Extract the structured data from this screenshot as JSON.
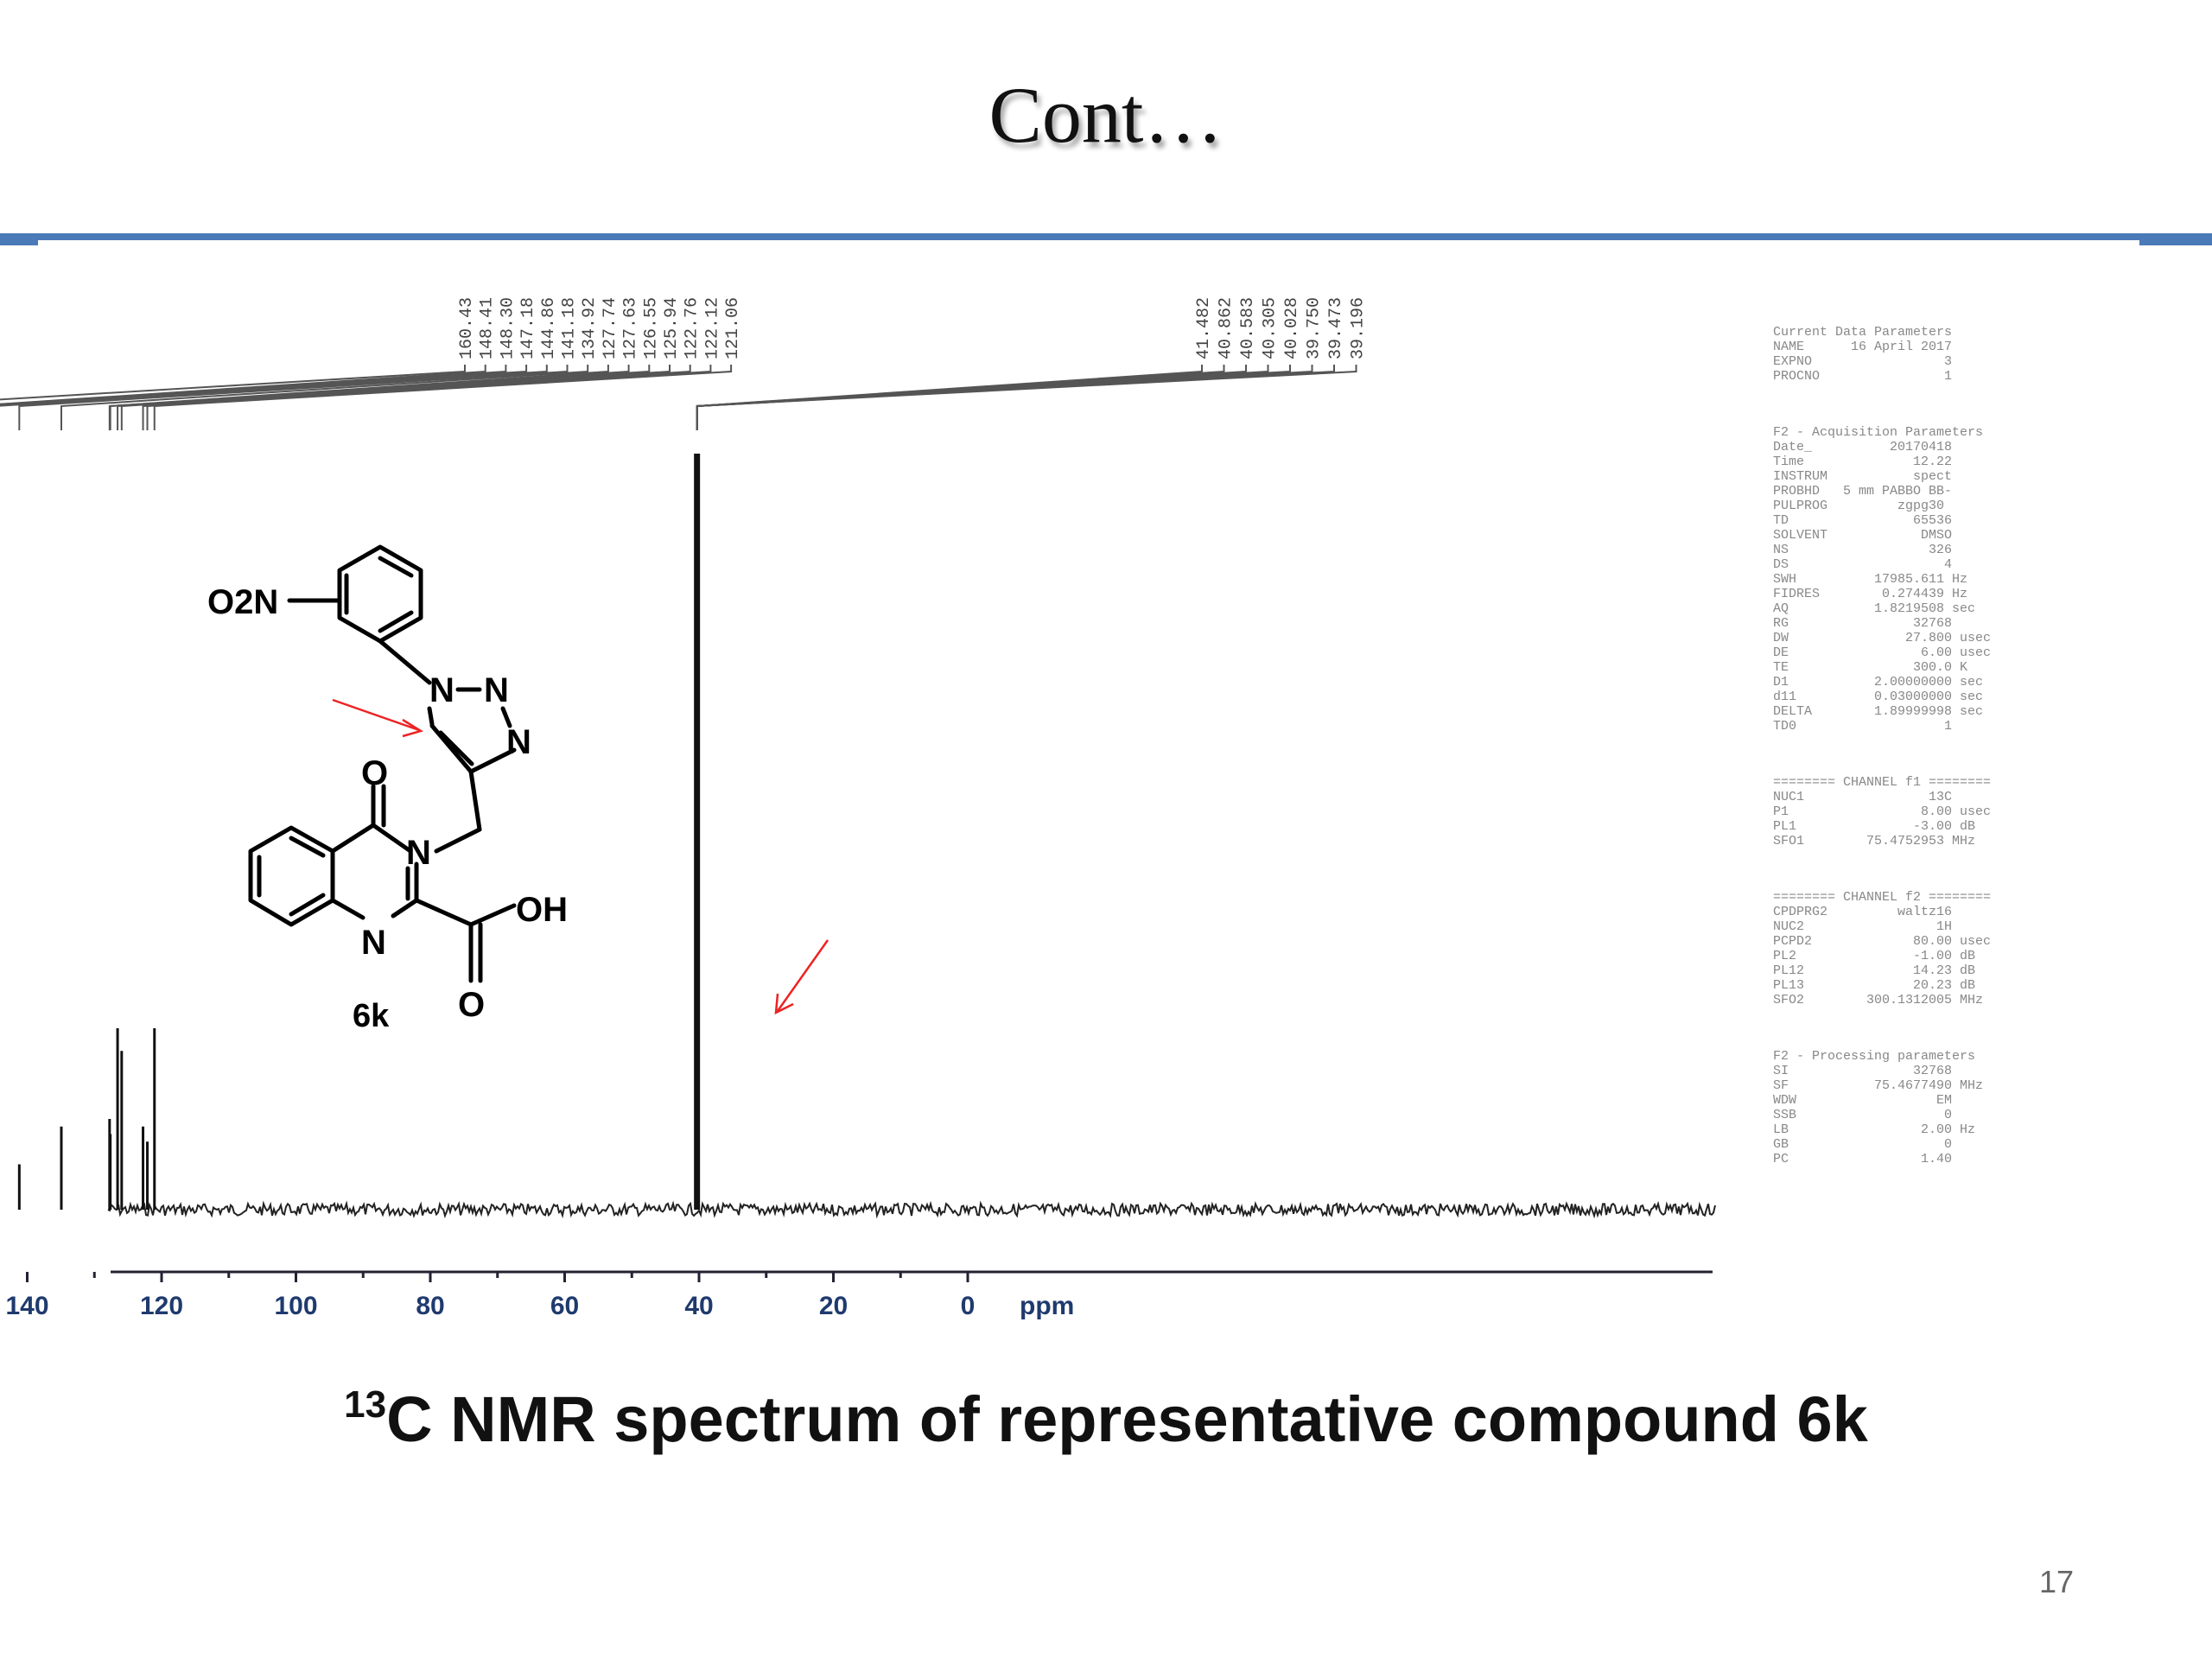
{
  "title": "Cont…",
  "caption": {
    "sup": "13",
    "text": "C NMR spectrum of representative compound 6k"
  },
  "page_number": "17",
  "structure": {
    "substituent": "O2N",
    "compound_label": "6k",
    "atoms": {
      "n1": "N",
      "n2": "N",
      "n3": "N",
      "n_amide": "N",
      "n_ring": "N",
      "o_keto": "O",
      "oh": "OH",
      "o_acid": "O"
    }
  },
  "params": [
    "Current Data Parameters\nNAME      16 April 2017\nEXPNO                 3\nPROCNO                1",
    "F2 - Acquisition Parameters\nDate_          20170418\nTime              12.22\nINSTRUM           spect\nPROBHD   5 mm PABBO BB-\nPULPROG         zgpg30\nTD                65536\nSOLVENT            DMSO\nNS                  326\nDS                    4\nSWH          17985.611 Hz\nFIDRES        0.274439 Hz\nAQ           1.8219508 sec\nRG                32768\nDW               27.800 usec\nDE                 6.00 usec\nTE                300.0 K\nD1           2.00000000 sec\nd11          0.03000000 sec\nDELTA        1.89999998 sec\nTD0                   1",
    "======== CHANNEL f1 ========\nNUC1                13C\nP1                 8.00 usec\nPL1               -3.00 dB\nSFO1        75.4752953 MHz",
    "======== CHANNEL f2 ========\nCPDPRG2         waltz16\nNUC2                 1H\nPCPD2             80.00 usec\nPL2               -1.00 dB\nPL12              14.23 dB\nPL13              20.23 dB\nSFO2        300.1312005 MHz",
    "F2 - Processing parameters\nSI                32768\nSF           75.4677490 MHz\nWDW                  EM\nSSB                   0\nLB                 2.00 Hz\nGB                    0\nPC                 1.40"
  ],
  "chart_data": {
    "type": "line",
    "title": "",
    "xlabel": "ppm",
    "ylabel": "",
    "x_axis": {
      "reversed": true,
      "range": [
        220,
        -10
      ],
      "ticks": [
        200,
        180,
        160,
        140,
        120,
        100,
        80,
        60,
        40,
        20,
        0
      ]
    },
    "grid": false,
    "legend": "none",
    "aromatic_peak_labels": [
      "160.43",
      "148.41",
      "148.30",
      "147.18",
      "144.86",
      "141.18",
      "134.92",
      "127.74",
      "127.63",
      "126.55",
      "125.94",
      "122.76",
      "122.12",
      "121.06"
    ],
    "aliphatic_peak_labels": [
      "41.482",
      "40.862",
      "40.583",
      "40.305",
      "40.028",
      "39.750",
      "39.473",
      "39.196"
    ],
    "peaks": [
      {
        "ppm": 160.43,
        "intensity": 0.07
      },
      {
        "ppm": 148.41,
        "intensity": 0.12
      },
      {
        "ppm": 148.3,
        "intensity": 0.1
      },
      {
        "ppm": 147.18,
        "intensity": 0.08
      },
      {
        "ppm": 144.86,
        "intensity": 0.09
      },
      {
        "ppm": 141.18,
        "intensity": 0.06
      },
      {
        "ppm": 134.92,
        "intensity": 0.11
      },
      {
        "ppm": 127.74,
        "intensity": 0.12
      },
      {
        "ppm": 127.63,
        "intensity": 0.1
      },
      {
        "ppm": 126.55,
        "intensity": 0.24
      },
      {
        "ppm": 125.94,
        "intensity": 0.21
      },
      {
        "ppm": 122.76,
        "intensity": 0.11
      },
      {
        "ppm": 122.12,
        "intensity": 0.09
      },
      {
        "ppm": 121.06,
        "intensity": 0.24
      },
      {
        "ppm": 40.3,
        "intensity": 1.0
      }
    ]
  }
}
